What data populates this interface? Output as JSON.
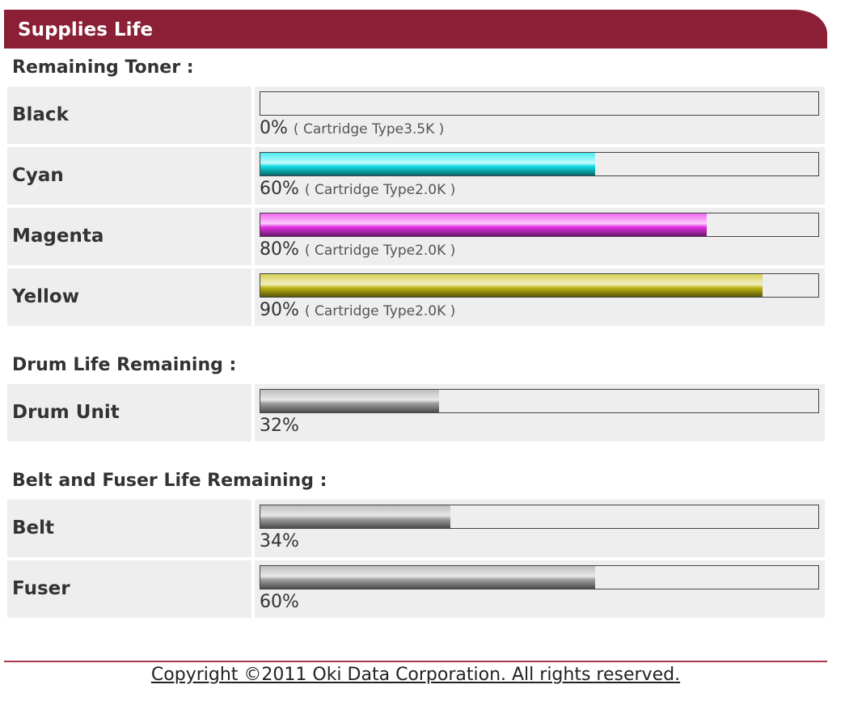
{
  "header": {
    "title": "Supplies Life"
  },
  "sections": [
    {
      "heading": "Remaining Toner :",
      "items": [
        {
          "name": "Black",
          "percent": 0,
          "percent_label": "0%",
          "note": "( Cartridge Type3.5K )",
          "color": "#222222"
        },
        {
          "name": "Cyan",
          "percent": 60,
          "percent_label": "60%",
          "note": "( Cartridge Type2.0K )",
          "color": "#11e8ee"
        },
        {
          "name": "Magenta",
          "percent": 80,
          "percent_label": "80%",
          "note": "( Cartridge Type2.0K )",
          "color": "#ee33ee"
        },
        {
          "name": "Yellow",
          "percent": 90,
          "percent_label": "90%",
          "note": "( Cartridge Type2.0K )",
          "color": "#c8c014"
        }
      ]
    },
    {
      "heading": "Drum Life Remaining :",
      "items": [
        {
          "name": "Drum Unit",
          "percent": 32,
          "percent_label": "32%",
          "color": "#a8a8a8"
        }
      ]
    },
    {
      "heading": "Belt and Fuser Life Remaining :",
      "items": [
        {
          "name": "Belt",
          "percent": 34,
          "percent_label": "34%",
          "color": "#a8a8a8"
        },
        {
          "name": "Fuser",
          "percent": 60,
          "percent_label": "60%",
          "color": "#a8a8a8"
        }
      ]
    }
  ],
  "footer": {
    "copyright": "Copyright ©2011 Oki Data Corporation. All rights reserved."
  }
}
